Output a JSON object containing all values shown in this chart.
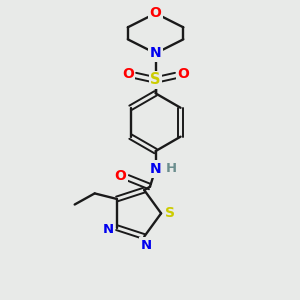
{
  "background_color": "#e8eae8",
  "bond_color": "#1a1a1a",
  "atom_colors": {
    "O": "#ff0000",
    "N": "#0000ee",
    "S_thio": "#cccc00",
    "S_sulfonyl": "#cccc00",
    "H": "#6b8e8e",
    "C": "#1a1a1a"
  },
  "figsize": [
    3.0,
    3.0
  ],
  "dpi": 100
}
